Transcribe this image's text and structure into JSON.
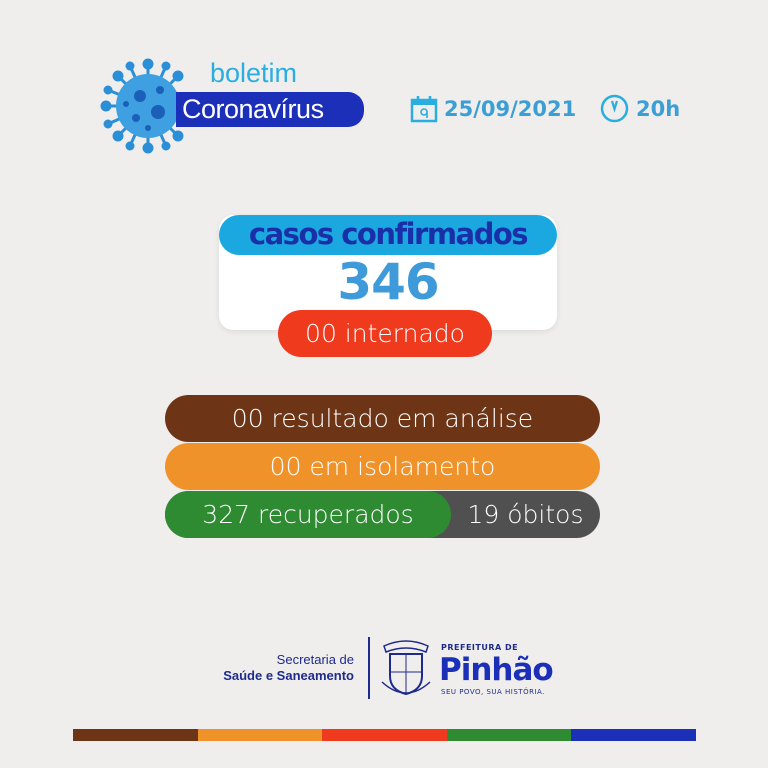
{
  "header": {
    "boletim": "boletim",
    "title": "Coronavírus",
    "date": "25/09/2021",
    "time": "20h",
    "icons": [
      "virus-icon",
      "calendar-icon",
      "clock-icon"
    ]
  },
  "confirmed": {
    "label": "casos confirmados",
    "value": "346",
    "hospitalized": "00 internado"
  },
  "stats": {
    "analysis": "00 resultado em análise",
    "isolation": "00 em isolamento",
    "recovered": "327 recuperados",
    "deaths": "19 óbitos"
  },
  "footer": {
    "sec_line1": "Secretaria de",
    "sec_line2": "Saúde e Saneamento",
    "crest_text": "PINHÃO",
    "pref": "PREFEITURA DE",
    "city": "Pinhão",
    "slogan": "SEU POVO, SUA HISTÓRIA."
  },
  "colors": {
    "brown": "#6e3416",
    "orange": "#f0922a",
    "red": "#ef3a1e",
    "green": "#2f8b32",
    "gray": "#505050",
    "blue": "#1b2fb8",
    "light_blue": "#1ba7e0"
  }
}
